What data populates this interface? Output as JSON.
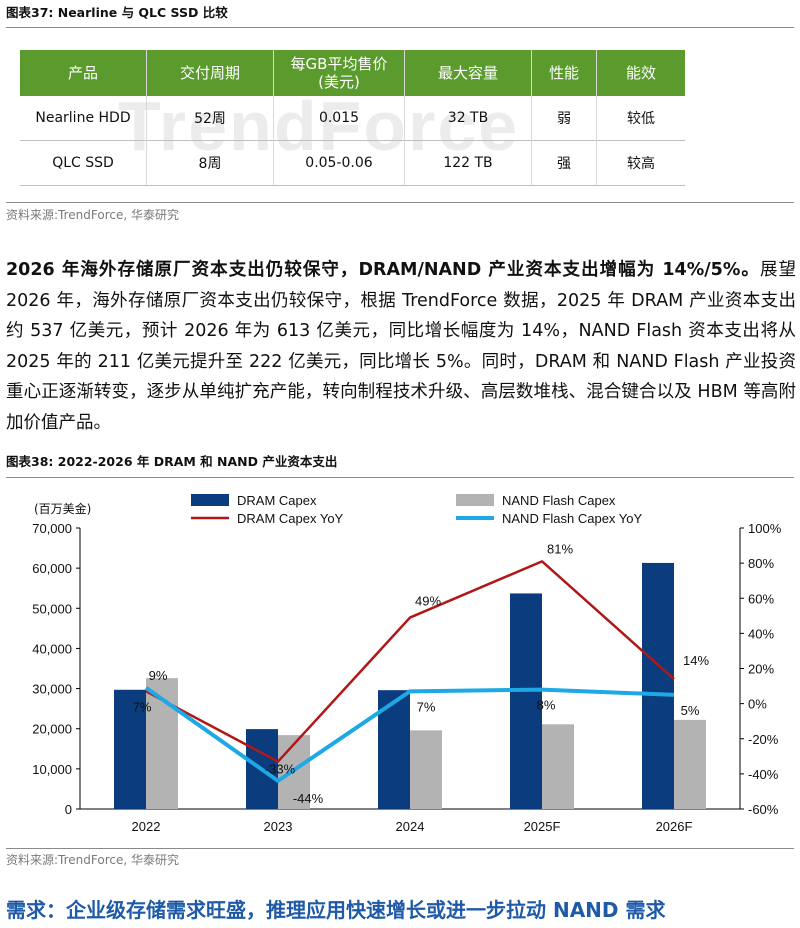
{
  "fig37": {
    "title": "图表37:  Nearline 与 QLC SSD 比较",
    "watermark": "TrendForce",
    "headers": [
      "产品",
      "交付周期",
      "每GB平均售价\n(美元)",
      "最大容量",
      "性能",
      "能效"
    ],
    "rows": [
      [
        "Nearline HDD",
        "52周",
        "0.015",
        "32 TB",
        "弱",
        "较低"
      ],
      [
        "QLC SSD",
        "8周",
        "0.05-0.06",
        "122 TB",
        "强",
        "较高"
      ]
    ],
    "source": "资料来源:TrendForce, 华泰研究"
  },
  "paragraph": {
    "lead": "2026 年海外存储原厂资本支出仍较保守，DRAM/NAND 产业资本支出增幅为 14%/5%。",
    "body": "展望 2026 年，海外存储原厂资本支出仍较保守，根据 TrendForce 数据，2025 年 DRAM 产业资本支出约 537 亿美元，预计 2026 年为 613 亿美元，同比增长幅度为 14%，NAND Flash 资本支出将从 2025 年的 211 亿美元提升至 222 亿美元，同比增长 5%。同时，DRAM 和 NAND Flash 产业投资重心正逐渐转变，逐步从单纯扩充产能，转向制程技术升级、高层数堆栈、混合键合以及 HBM 等高附加价值产品。"
  },
  "fig38": {
    "title": "图表38:  2022-2026 年 DRAM 和 NAND 产业资本支出",
    "source": "资料来源:TrendForce, 华泰研究"
  },
  "chart_data": {
    "type": "bar",
    "unit_label": "(百万美金)",
    "categories": [
      "2022",
      "2023",
      "2024",
      "2025F",
      "2026F"
    ],
    "series": [
      {
        "name": "DRAM Capex",
        "kind": "bar",
        "axis": "left",
        "color": "#0b3c7d",
        "values": [
          29700,
          19900,
          29600,
          53700,
          61300
        ]
      },
      {
        "name": "NAND Flash Capex",
        "kind": "bar",
        "axis": "left",
        "color": "#b3b3b3",
        "values": [
          32600,
          18400,
          19600,
          21100,
          22200
        ]
      },
      {
        "name": "DRAM Capex YoY",
        "kind": "line",
        "axis": "right",
        "color": "#b01818",
        "values": [
          7,
          -33,
          49,
          81,
          14
        ],
        "labels": [
          "7%",
          "-33%",
          "49%",
          "81%",
          "14%"
        ]
      },
      {
        "name": "NAND Flash Capex YoY",
        "kind": "line",
        "axis": "right",
        "color": "#1ea8e6",
        "values": [
          9,
          -44,
          7,
          8,
          5
        ],
        "labels": [
          "9%",
          "-44%",
          "7%",
          "8%",
          "5%"
        ]
      }
    ],
    "ylim_left": [
      0,
      70000
    ],
    "yticks_left": [
      "0",
      "10,000",
      "20,000",
      "30,000",
      "40,000",
      "50,000",
      "60,000",
      "70,000"
    ],
    "ylim_right": [
      -60,
      100
    ],
    "yticks_right": [
      "-60%",
      "-40%",
      "-20%",
      "0%",
      "20%",
      "40%",
      "60%",
      "80%",
      "100%"
    ],
    "legend_position": "top"
  },
  "bottom_heading": "需求：企业级存储需求旺盛，推理应用快速增长或进一步拉动 NAND 需求"
}
